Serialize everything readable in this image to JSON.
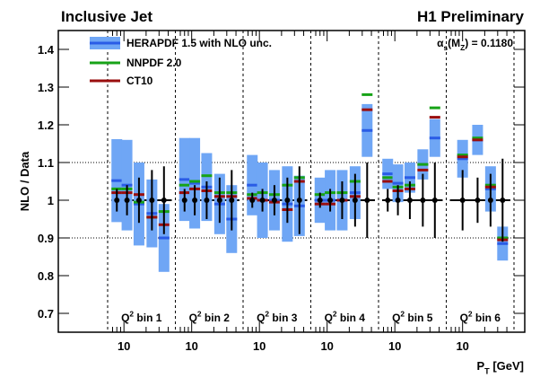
{
  "chart_data": {
    "type": "ratio",
    "title": "Inclusive Jet",
    "label": "H1 Preliminary",
    "annotation": [
      "α",
      "s",
      "(M",
      "Z",
      ") = 0.1180"
    ],
    "ylabel": "NLO / Data",
    "xlabel": [
      "P",
      "T",
      " [GeV]"
    ],
    "ylim": [
      0.65,
      1.45
    ],
    "yticks": [
      0.7,
      0.8,
      0.9,
      1,
      1.1,
      1.2,
      1.3,
      1.4
    ],
    "hlines": [
      0.9,
      1.1
    ],
    "baseline": 1,
    "xscale": "log",
    "xlim": [
      6,
      50
    ],
    "xticks": [
      10
    ],
    "xminor": [
      7,
      8,
      9,
      20,
      30,
      40
    ],
    "series": [
      {
        "name": "HERAPDF 1.5 with NLO unc.",
        "color": "#2a5ce6",
        "band_color": "#6fa6f5"
      },
      {
        "name": "NNPDF 2.0",
        "color": "#17a317"
      },
      {
        "name": "CT10",
        "color": "#9a0e0e"
      }
    ],
    "panels": [
      {
        "label": [
          "Q",
          "2",
          " bin 1"
        ],
        "pt": [
          8,
          11,
          16,
          24,
          35
        ],
        "series": [
          {
            "values": [
              1.052,
              1.04,
              0.99,
              0.965,
              0.9
            ],
            "errors": [
              0.11,
              0.12,
              0.11,
              0.09,
              0.09
            ]
          },
          {
            "values": [
              1.03,
              1.03,
              0.995,
              0.955,
              0.97
            ]
          },
          {
            "values": [
              1.02,
              1.02,
              1.015,
              0.955,
              0.935
            ]
          }
        ],
        "data": {
          "values": [
            1,
            1,
            1,
            1,
            1
          ],
          "errors": [
            0.03,
            0.04,
            0.06,
            0.08,
            0.09
          ]
        }
      },
      {
        "label": [
          "Q",
          "2",
          " bin 2"
        ],
        "pt": [
          8,
          11,
          16,
          24,
          35
        ],
        "series": [
          {
            "values": [
              1.055,
              1.045,
              1.035,
              0.99,
              0.95
            ],
            "errors": [
              0.11,
              0.12,
              0.09,
              0.08,
              0.09
            ]
          },
          {
            "values": [
              1.04,
              1.05,
              1.065,
              1.02,
              1.02
            ]
          },
          {
            "values": [
              1.02,
              1.03,
              1.025,
              1.01,
              1.01
            ]
          }
        ],
        "data": {
          "values": [
            1,
            1,
            1,
            1,
            1
          ],
          "errors": [
            0.03,
            0.04,
            0.05,
            0.06,
            0.08
          ]
        }
      },
      {
        "label": [
          "Q",
          "2",
          " bin 3"
        ],
        "pt": [
          8,
          11,
          16,
          24,
          35
        ],
        "series": [
          {
            "values": [
              1.04,
              1.0,
              1.0,
              0.99,
              0.985
            ],
            "errors": [
              0.08,
              0.1,
              0.08,
              0.1,
              0.08
            ]
          },
          {
            "values": [
              1.015,
              1.02,
              1.015,
              1.04,
              1.06
            ]
          },
          {
            "values": [
              1.005,
              1.0,
              0.995,
              0.975,
              1.05
            ]
          }
        ],
        "data": {
          "values": [
            1,
            1,
            1,
            1,
            1
          ],
          "errors": [
            0.02,
            0.03,
            0.04,
            0.06,
            0.09
          ]
        }
      },
      {
        "label": [
          "Q",
          "2",
          " bin 4"
        ],
        "pt": [
          8,
          11,
          16,
          24,
          35
        ],
        "series": [
          {
            "values": [
              1.0,
              1.0,
              1.0,
              1.02,
              1.185
            ],
            "errors": [
              0.06,
              0.08,
              0.08,
              0.07,
              0.07
            ]
          },
          {
            "values": [
              1.015,
              1.02,
              1.02,
              1.05,
              1.28
            ]
          },
          {
            "values": [
              0.99,
              0.99,
              1.0,
              1.01,
              1.24
            ]
          }
        ],
        "data": {
          "values": [
            1,
            1,
            1,
            1,
            1
          ],
          "errors": [
            0.02,
            0.03,
            0.05,
            0.07,
            0.1
          ]
        }
      },
      {
        "label": [
          "Q",
          "2",
          " bin 5"
        ],
        "pt": [
          8,
          11,
          16,
          24,
          35
        ],
        "series": [
          {
            "values": [
              1.07,
              1.045,
              1.06,
              1.095,
              1.165
            ],
            "errors": [
              0.04,
              0.05,
              0.04,
              0.04,
              0.05
            ]
          },
          {
            "values": [
              1.06,
              1.035,
              1.04,
              1.095,
              1.245
            ]
          },
          {
            "values": [
              1.05,
              1.025,
              1.03,
              1.08,
              1.22
            ]
          }
        ],
        "data": {
          "values": [
            1,
            1,
            1,
            1,
            1
          ],
          "errors": [
            0.03,
            0.04,
            0.05,
            0.07,
            0.1
          ]
        }
      },
      {
        "label": [
          "Q",
          "2",
          " bin 6"
        ],
        "pt": [
          10,
          16,
          24,
          35
        ],
        "series": [
          {
            "values": [
              1.11,
              1.16,
              1.03,
              0.885
            ],
            "errors": [
              0.05,
              0.04,
              0.06,
              0.045
            ]
          },
          {
            "values": [
              1.12,
              1.165,
              1.04,
              0.9
            ]
          },
          {
            "values": [
              1.115,
              1.16,
              1.035,
              0.895
            ]
          }
        ],
        "data": {
          "values": [
            1,
            1,
            1,
            1
          ],
          "errors": [
            0.08,
            0.06,
            0.07,
            0.11
          ]
        }
      }
    ]
  }
}
